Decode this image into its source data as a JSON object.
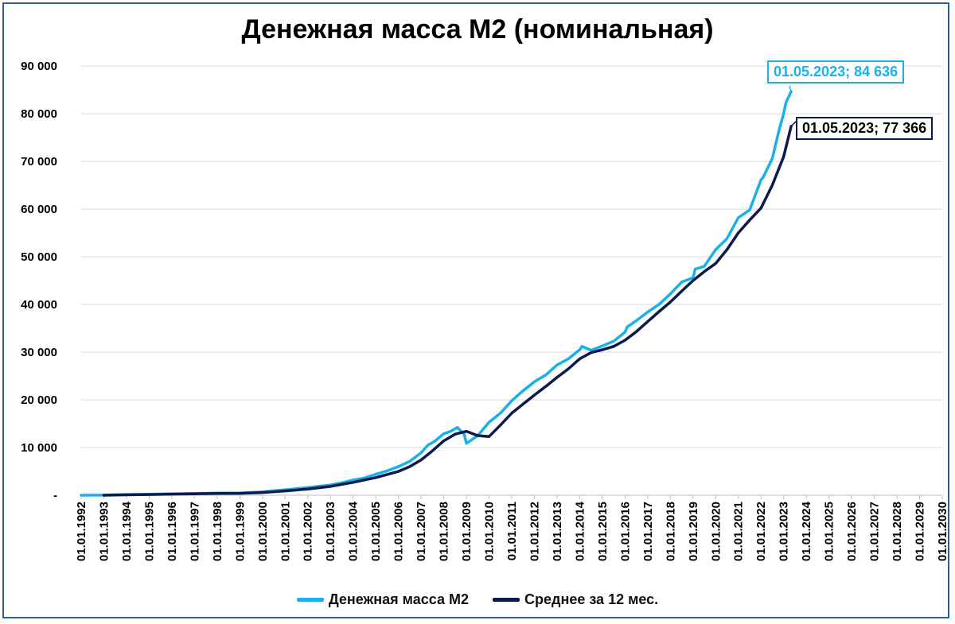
{
  "chart_data": {
    "type": "line",
    "title": "Денежная масса M2 (номинальная)",
    "ylim": [
      0,
      90000
    ],
    "yticks": [
      "-",
      "10 000",
      "20 000",
      "30 000",
      "40 000",
      "50 000",
      "60 000",
      "70 000",
      "80 000",
      "90 000"
    ],
    "ytick_values": [
      0,
      10000,
      20000,
      30000,
      40000,
      50000,
      60000,
      70000,
      80000,
      90000
    ],
    "xlim": [
      1992,
      2030
    ],
    "xticks": [
      "01.01.1992",
      "01.01.1993",
      "01.01.1994",
      "01.01.1995",
      "01.01.1996",
      "01.01.1997",
      "01.01.1998",
      "01.01.1999",
      "01.01.2000",
      "01.01.2001",
      "01.01.2002",
      "01.01.2003",
      "01.01.2004",
      "01.01.2005",
      "01.01.2006",
      "01.01.2007",
      "01.01.2008",
      "01.01.2009",
      "01.01.2010",
      "01.01.2011",
      "01.01.2012",
      "01.01.2013",
      "01.01.2014",
      "01.01.2015",
      "01.01.2016",
      "01.01.2017",
      "01.01.2018",
      "01.01.2019",
      "01.01.2020",
      "01.01.2021",
      "01.01.2022",
      "01.01.2023",
      "01.01.2024",
      "01.01.2025",
      "01.01.2026",
      "01.01.2027",
      "01.01.2028",
      "01.01.2029",
      "01.01.2030"
    ],
    "grid": true,
    "legend_position": "bottom",
    "series": [
      {
        "name": "Денежная масса M2",
        "color": "#1ab0ea",
        "x": [
          1992.0,
          1993.0,
          1994.0,
          1995.0,
          1996.0,
          1997.0,
          1998.0,
          1999.0,
          2000.0,
          2001.0,
          2002.0,
          2003.0,
          2003.5,
          2004.0,
          2004.5,
          2005.0,
          2005.5,
          2006.0,
          2006.5,
          2007.0,
          2007.3,
          2007.6,
          2008.0,
          2008.3,
          2008.6,
          2008.9,
          2009.0,
          2009.1,
          2009.5,
          2010.0,
          2010.5,
          2011.0,
          2011.5,
          2012.0,
          2012.5,
          2013.0,
          2013.5,
          2014.0,
          2014.1,
          2014.5,
          2015.0,
          2015.5,
          2016.0,
          2016.1,
          2016.5,
          2017.0,
          2017.5,
          2018.0,
          2018.5,
          2019.0,
          2019.1,
          2019.5,
          2020.0,
          2020.5,
          2021.0,
          2021.5,
          2022.0,
          2022.1,
          2022.5,
          2022.8,
          2023.0,
          2023.1,
          2023.33
        ],
        "y": [
          0,
          30,
          150,
          220,
          290,
          380,
          450,
          450,
          720,
          1150,
          1600,
          2150,
          2600,
          3200,
          3600,
          4400,
          5100,
          6000,
          7100,
          8900,
          10500,
          11300,
          12900,
          13400,
          14200,
          12800,
          10900,
          11200,
          12500,
          15300,
          17200,
          19800,
          21900,
          23800,
          25200,
          27300,
          28600,
          30500,
          31200,
          30400,
          31300,
          32300,
          34200,
          35300,
          36600,
          38400,
          40000,
          42200,
          44700,
          45600,
          47400,
          48000,
          51500,
          53800,
          58200,
          59800,
          66100,
          66700,
          70600,
          76600,
          80000,
          82300,
          84636
        ]
      },
      {
        "name": "Среднее за 12 мес.",
        "color": "#0d1a4d",
        "x": [
          1993.0,
          1994.0,
          1995.0,
          1996.0,
          1997.0,
          1998.0,
          1999.0,
          2000.0,
          2001.0,
          2002.0,
          2003.0,
          2004.0,
          2005.0,
          2006.0,
          2006.5,
          2007.0,
          2007.5,
          2008.0,
          2008.5,
          2009.0,
          2009.5,
          2010.0,
          2010.5,
          2011.0,
          2011.5,
          2012.0,
          2012.5,
          2013.0,
          2013.5,
          2014.0,
          2014.5,
          2015.0,
          2015.5,
          2016.0,
          2016.5,
          2017.0,
          2017.5,
          2018.0,
          2018.5,
          2019.0,
          2019.5,
          2020.0,
          2020.5,
          2021.0,
          2021.5,
          2022.0,
          2022.5,
          2023.0,
          2023.33
        ],
        "y": [
          0,
          80,
          150,
          230,
          300,
          370,
          400,
          560,
          900,
          1300,
          1850,
          2700,
          3700,
          5000,
          6000,
          7400,
          9300,
          11400,
          12800,
          13400,
          12500,
          12300,
          14700,
          17200,
          19100,
          21000,
          22800,
          24700,
          26500,
          28600,
          29900,
          30500,
          31200,
          32500,
          34300,
          36400,
          38500,
          40500,
          42800,
          45000,
          46900,
          48600,
          51500,
          55000,
          57700,
          60200,
          65000,
          71000,
          77366
        ]
      }
    ],
    "annotations": [
      {
        "series": "Денежная масса M2",
        "text": "01.05.2023;  84 636"
      },
      {
        "series": "Среднее за 12 мес.",
        "text": "01.05.2023;  77 366"
      }
    ]
  }
}
